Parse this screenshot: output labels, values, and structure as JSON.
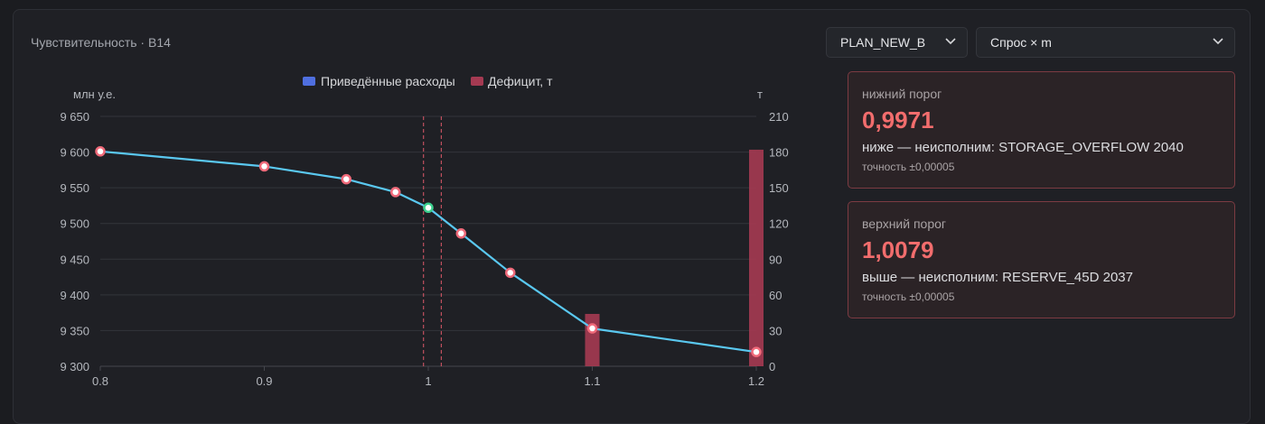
{
  "panel": {
    "title": "Чувствительность · B14"
  },
  "controls": {
    "plan_select": "PLAN_NEW_B",
    "param_select": "Спрос × m"
  },
  "thresholds": {
    "lower": {
      "label": "нижний порог",
      "value": "0,9971",
      "description": "ниже — неисполним: STORAGE_OVERFLOW 2040",
      "precision": "точность ±0,00005"
    },
    "upper": {
      "label": "верхний порог",
      "value": "1,0079",
      "description": "выше — неисполним: RESERVE_45D 2037",
      "precision": "точность ±0,00005"
    }
  },
  "colors": {
    "line": "#5ac8f0",
    "bar": "#a53a52",
    "point_normal": "#f06a7a",
    "point_base": "#3ccf8e",
    "threshold": "#e05a6a",
    "legend_cost": "#4f6fe0",
    "legend_deficit": "#a53a52"
  },
  "chart_data": {
    "type": "line",
    "legend": [
      "Приведённые расходы",
      "Дефицит, т"
    ],
    "y_left_label": "млн у.е.",
    "y_right_label": "т",
    "x_ticks": [
      "0.8",
      "0.9",
      "1",
      "1.1",
      "1.2"
    ],
    "y_left_ticks": [
      "9 300",
      "9 350",
      "9 400",
      "9 450",
      "9 500",
      "9 550",
      "9 600",
      "9 650"
    ],
    "y_right_ticks": [
      "0",
      "30",
      "60",
      "90",
      "120",
      "150",
      "180",
      "210"
    ],
    "xlim": [
      0.8,
      1.2
    ],
    "ylim_left": [
      9300,
      9650
    ],
    "ylim_right": [
      0,
      210
    ],
    "thresholds_x": [
      0.9971,
      1.0079
    ],
    "series": [
      {
        "name": "Приведённые расходы",
        "axis": "left",
        "points": [
          {
            "x": 0.8,
            "y": 9601
          },
          {
            "x": 0.9,
            "y": 9580
          },
          {
            "x": 0.95,
            "y": 9562
          },
          {
            "x": 0.98,
            "y": 9544
          },
          {
            "x": 1.0,
            "y": 9522,
            "base": true
          },
          {
            "x": 1.02,
            "y": 9486
          },
          {
            "x": 1.05,
            "y": 9431
          },
          {
            "x": 1.1,
            "y": 9353
          },
          {
            "x": 1.2,
            "y": 9320
          }
        ]
      },
      {
        "name": "Дефицит, т",
        "axis": "right",
        "type": "bar",
        "points": [
          {
            "x": 1.1,
            "y": 44
          },
          {
            "x": 1.2,
            "y": 182
          }
        ]
      }
    ],
    "grid": true
  }
}
